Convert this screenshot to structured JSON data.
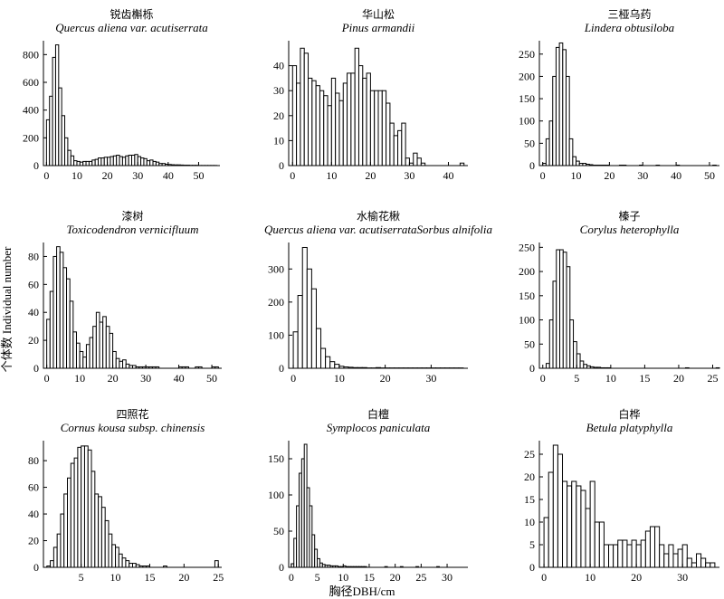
{
  "figure": {
    "ylabel": "个体数 Individual number",
    "xlabel": "胸径DBH/cm"
  },
  "chart_data": [
    {
      "type": "bar",
      "title": "锐齿槲栎",
      "subtitle": "Quercus aliena var. acutiserrata",
      "xlim": [
        -1,
        57
      ],
      "ylim": [
        0,
        900
      ],
      "xticks": [
        0,
        10,
        20,
        30,
        40,
        50
      ],
      "yticks": [
        0,
        200,
        400,
        600,
        800
      ],
      "bin_width": 1,
      "bin_start": 0,
      "values": [
        330,
        500,
        780,
        870,
        560,
        360,
        200,
        110,
        70,
        35,
        30,
        25,
        30,
        30,
        30,
        40,
        45,
        55,
        55,
        60,
        60,
        65,
        70,
        75,
        65,
        60,
        70,
        75,
        75,
        80,
        65,
        55,
        50,
        35,
        40,
        30,
        25,
        15,
        15,
        10,
        8,
        6,
        5,
        5,
        4,
        3,
        3,
        2,
        2,
        2,
        1,
        1,
        1,
        1,
        1,
        1
      ]
    },
    {
      "type": "bar",
      "title": "华山松",
      "subtitle": "Pinus armandii",
      "xlim": [
        -1,
        45
      ],
      "ylim": [
        0,
        50
      ],
      "xticks": [
        0,
        10,
        20,
        30,
        40
      ],
      "yticks": [
        0,
        10,
        20,
        30,
        40
      ],
      "bin_width": 1,
      "bin_start": 0,
      "values": [
        40,
        33,
        47,
        45,
        35,
        34,
        32,
        30,
        28,
        24,
        35,
        29,
        26,
        33,
        37,
        37,
        47,
        40,
        35,
        37,
        30,
        30,
        30,
        30,
        25,
        17,
        12,
        14,
        17,
        3,
        1,
        5,
        3,
        1,
        0,
        0,
        0,
        0,
        0,
        0,
        0,
        0,
        0,
        1
      ]
    },
    {
      "type": "bar",
      "title": "三桠乌药",
      "subtitle": "Lindera obtusiloba",
      "xlim": [
        -1,
        53
      ],
      "ylim": [
        0,
        280
      ],
      "xticks": [
        0,
        10,
        20,
        30,
        40,
        50
      ],
      "yticks": [
        0,
        50,
        100,
        150,
        200,
        250
      ],
      "bin_width": 1,
      "bin_start": 0,
      "values": [
        5,
        60,
        100,
        200,
        265,
        275,
        260,
        200,
        60,
        20,
        10,
        5,
        5,
        3,
        2,
        1,
        1,
        1,
        1,
        1,
        0,
        0,
        0,
        1,
        1,
        0,
        0,
        0,
        0,
        1,
        0,
        0,
        0,
        0,
        1,
        0,
        0,
        0,
        0,
        0,
        1,
        0,
        0,
        0,
        0,
        0,
        0,
        0,
        0,
        0,
        0,
        1
      ]
    },
    {
      "type": "bar",
      "title": "漆树",
      "subtitle": "Toxicodendron vernicifluum",
      "xlim": [
        -1,
        53
      ],
      "ylim": [
        0,
        90
      ],
      "xticks": [
        0,
        10,
        20,
        30,
        40,
        50
      ],
      "yticks": [
        0,
        20,
        40,
        60,
        80
      ],
      "bin_width": 1,
      "bin_start": 0,
      "values": [
        35,
        55,
        80,
        87,
        83,
        72,
        64,
        48,
        26,
        18,
        12,
        8,
        17,
        22,
        30,
        40,
        33,
        37,
        30,
        25,
        12,
        7,
        5,
        6,
        3,
        2,
        2,
        1,
        1,
        1,
        1,
        1,
        1,
        1,
        0,
        0,
        0,
        0,
        0,
        0,
        1,
        1,
        1,
        0,
        0,
        1,
        1,
        0,
        0,
        0,
        1,
        1
      ]
    },
    {
      "type": "bar",
      "title": "水榆花楸",
      "subtitle": "Quercus aliena var. acutiserrataSorbus alnifolia",
      "xlim": [
        -1,
        38
      ],
      "ylim": [
        0,
        380
      ],
      "xticks": [
        0,
        10,
        20,
        30
      ],
      "yticks": [
        0,
        100,
        200,
        300
      ],
      "bin_width": 1,
      "bin_start": 0,
      "values": [
        110,
        220,
        365,
        300,
        240,
        120,
        60,
        35,
        20,
        12,
        6,
        4,
        3,
        2,
        2,
        2,
        1,
        1,
        2,
        1,
        1,
        1,
        1,
        1,
        1,
        1,
        1,
        1,
        1,
        1,
        1,
        1,
        1,
        1,
        1,
        1,
        1
      ]
    },
    {
      "type": "bar",
      "title": "榛子",
      "subtitle": "Corylus heterophylla",
      "xlim": [
        -0.5,
        26
      ],
      "ylim": [
        0,
        260
      ],
      "xticks": [
        0,
        5,
        10,
        15,
        20,
        25
      ],
      "yticks": [
        0,
        50,
        100,
        150,
        200,
        250
      ],
      "bin_width": 0.5,
      "bin_start": 0,
      "values": [
        0,
        10,
        100,
        180,
        245,
        245,
        240,
        210,
        100,
        55,
        30,
        15,
        8,
        5,
        3,
        2,
        2,
        1,
        1,
        1,
        0,
        0,
        0,
        0,
        0,
        0,
        0,
        0,
        0,
        0,
        0,
        0,
        0,
        0,
        0,
        0,
        0,
        0,
        0,
        0,
        0,
        0,
        1,
        0,
        0,
        0,
        0,
        0,
        0,
        0,
        0,
        1
      ]
    },
    {
      "type": "bar",
      "title": "四照花",
      "subtitle": "Cornus kousa subsp. chinensis",
      "xlim": [
        -0.5,
        25.5
      ],
      "ylim": [
        0,
        95
      ],
      "xticks": [
        5,
        10,
        15,
        20,
        25
      ],
      "yticks": [
        0,
        20,
        40,
        60,
        80
      ],
      "bin_width": 0.5,
      "bin_start": 0,
      "values": [
        1,
        5,
        15,
        25,
        40,
        55,
        67,
        78,
        82,
        90,
        91,
        91,
        88,
        72,
        55,
        53,
        45,
        35,
        25,
        17,
        15,
        10,
        7,
        5,
        3,
        3,
        2,
        1,
        1,
        1,
        0,
        0,
        0,
        0,
        1,
        0,
        0,
        0,
        0,
        0,
        0,
        0,
        0,
        0,
        0,
        0,
        0,
        0,
        0,
        5
      ]
    },
    {
      "type": "bar",
      "title": "白檀",
      "subtitle": "Symplocos paniculata",
      "xlim": [
        -0.5,
        34
      ],
      "ylim": [
        0,
        175
      ],
      "xticks": [
        0,
        5,
        10,
        15,
        20,
        25,
        30
      ],
      "yticks": [
        0,
        50,
        100,
        150
      ],
      "bin_width": 0.5,
      "bin_start": 0,
      "values": [
        5,
        40,
        85,
        130,
        150,
        170,
        110,
        85,
        45,
        25,
        12,
        6,
        4,
        3,
        3,
        2,
        2,
        2,
        1,
        1,
        2,
        1,
        1,
        1,
        1,
        1,
        1,
        1,
        1,
        0,
        0,
        0,
        0,
        0,
        0,
        0,
        1,
        0,
        0,
        0,
        0,
        0,
        1,
        0,
        0,
        0,
        0,
        0,
        1,
        0,
        0,
        0,
        0,
        0,
        0,
        0,
        1
      ]
    },
    {
      "type": "bar",
      "title": "白桦",
      "subtitle": "Betula platyphylla",
      "xlim": [
        -1,
        38
      ],
      "ylim": [
        0,
        28
      ],
      "xticks": [
        0,
        10,
        20,
        30
      ],
      "yticks": [
        0,
        5,
        10,
        15,
        20,
        25
      ],
      "bin_width": 1,
      "bin_start": 0,
      "values": [
        11,
        21,
        27,
        25,
        19,
        18,
        19,
        18,
        17,
        13,
        19,
        10,
        10,
        5,
        5,
        5,
        6,
        6,
        5,
        6,
        5,
        6,
        8,
        9,
        9,
        5,
        3,
        5,
        3,
        4,
        5,
        2,
        1,
        3,
        2,
        1,
        1
      ]
    }
  ]
}
